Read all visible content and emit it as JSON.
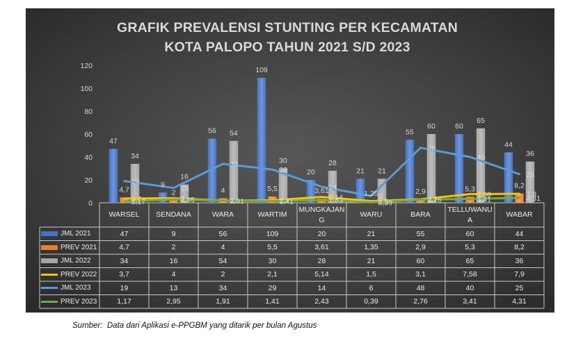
{
  "chart_data": {
    "type": "bar",
    "title": [
      "GRAFIK PREVALENSI STUNTING PER KECAMATAN",
      "KOTA PALOPO TAHUN 2021 S/D 2023"
    ],
    "categories": [
      "WARSEL",
      "SENDANA",
      "WARA",
      "WARTIM",
      "MUNGKAJANG",
      "WARU",
      "BARA",
      "TELLUWANUA",
      "WABAR"
    ],
    "ylim": [
      0,
      120
    ],
    "yticks": [
      0,
      20,
      40,
      60,
      80,
      100,
      120
    ],
    "grid": false,
    "legend": "bottom",
    "data_table": true,
    "series": [
      {
        "name": "JML 2021",
        "type": "bar",
        "color": "#4472c4",
        "values": [
          47,
          9,
          56,
          109,
          20,
          21,
          55,
          60,
          44
        ]
      },
      {
        "name": "PREV 2021",
        "type": "bar",
        "color": "#ed7d31",
        "values": [
          4.7,
          2,
          4,
          5.5,
          3.61,
          1.35,
          2.9,
          5.3,
          8.2
        ]
      },
      {
        "name": "JML 2022",
        "type": "bar",
        "color": "#a5a5a5",
        "values": [
          34,
          16,
          54,
          30,
          28,
          21,
          60,
          65,
          36
        ]
      },
      {
        "name": "PREV 2022",
        "type": "line",
        "color": "#ffc000",
        "values": [
          3.7,
          4,
          2,
          2.1,
          5.14,
          1.5,
          3.1,
          7.58,
          7.9
        ]
      },
      {
        "name": "JML 2023",
        "type": "line",
        "color": "#5b9bd5",
        "values": [
          19,
          13,
          34,
          29,
          14,
          6,
          48,
          40,
          25
        ]
      },
      {
        "name": "PREV 2023",
        "type": "line",
        "color": "#70ad47",
        "values": [
          1.17,
          2.95,
          1.91,
          1.41,
          2.43,
          0.39,
          2.76,
          3.41,
          4.31
        ]
      }
    ]
  },
  "source_note": "Sumber:  Data dari Aplikasi e-PPGBM yang ditarik per bulan Agustus"
}
